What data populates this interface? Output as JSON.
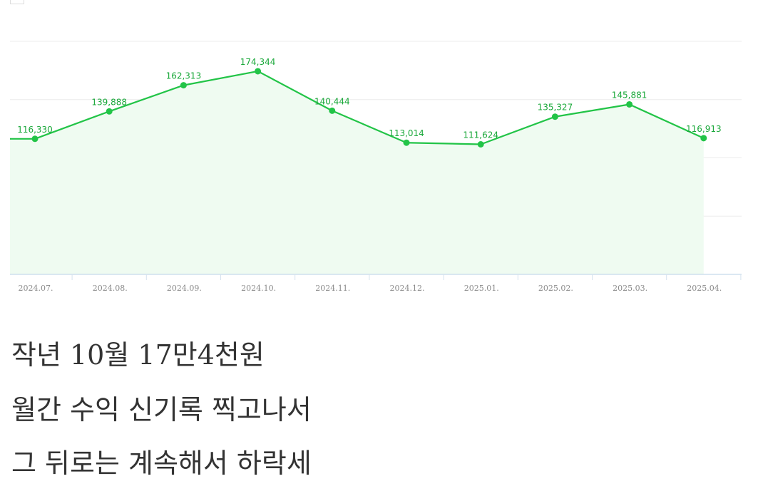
{
  "chart_data": {
    "type": "area",
    "categories": [
      "2024.07.",
      "2024.08.",
      "2024.09.",
      "2024.10.",
      "2024.11.",
      "2024.12.",
      "2025.01.",
      "2025.02.",
      "2025.03.",
      "2025.04."
    ],
    "values": [
      116330,
      139888,
      162313,
      174344,
      140444,
      113014,
      111624,
      135327,
      145881,
      116913
    ],
    "value_labels": [
      "116,330",
      "139,888",
      "162,313",
      "174,344",
      "140,444",
      "113,014",
      "111,624",
      "135,327",
      "145,881",
      "116,913"
    ],
    "ylim": [
      0,
      200000
    ],
    "grid": true,
    "line_color": "#22c447",
    "fill_color": "#effbf1",
    "label_color": "#1aa83a"
  },
  "caption": {
    "lines": [
      "작년 10월 17만4천원",
      "월간 수익 신기록 찍고나서",
      "그 뒤로는 계속해서 하락세"
    ]
  }
}
